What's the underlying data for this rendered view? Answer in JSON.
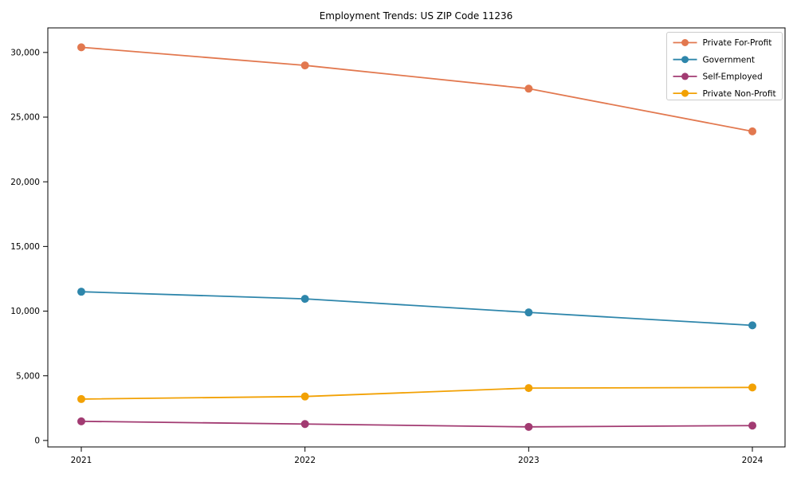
{
  "chart_data": {
    "type": "line",
    "title": "Employment Trends: US ZIP Code 11236",
    "x_labels": [
      "2021",
      "2022",
      "2023",
      "2024"
    ],
    "series": [
      {
        "name": "Private For-Profit",
        "color": "#E2784F",
        "values": [
          30400,
          29000,
          27200,
          23900
        ]
      },
      {
        "name": "Government",
        "color": "#2E86AB",
        "values": [
          11500,
          10950,
          9900,
          8900
        ]
      },
      {
        "name": "Self-Employed",
        "color": "#A23B72",
        "values": [
          1480,
          1270,
          1050,
          1150
        ]
      },
      {
        "name": "Private Non-Profit",
        "color": "#F2A104",
        "values": [
          3200,
          3400,
          4050,
          4100
        ]
      }
    ],
    "yticks": [
      0,
      5000,
      10000,
      15000,
      20000,
      25000,
      30000
    ],
    "ytick_labels": [
      "0",
      "5,000",
      "10,000",
      "15,000",
      "20,000",
      "25,000",
      "30,000"
    ],
    "ylim": [
      -500,
      31900
    ],
    "xlabel": "",
    "ylabel": "",
    "grid": false,
    "legend_position": "upper right",
    "marker": "circle",
    "axis_color": "#000000",
    "legend_border_color": "#cccccc"
  }
}
